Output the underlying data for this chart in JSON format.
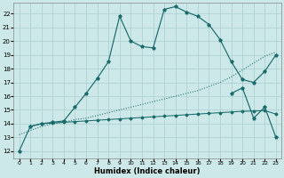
{
  "xlabel": "Humidex (Indice chaleur)",
  "bg_color": "#cde8e8",
  "grid_color": "#aacece",
  "line_color": "#1a6b6b",
  "xlim": [
    -0.5,
    23.5
  ],
  "ylim": [
    11.5,
    22.8
  ],
  "xticks": [
    0,
    1,
    2,
    3,
    4,
    5,
    6,
    7,
    8,
    9,
    10,
    11,
    12,
    13,
    14,
    15,
    16,
    17,
    18,
    19,
    20,
    21,
    22,
    23
  ],
  "yticks": [
    12,
    13,
    14,
    15,
    16,
    17,
    18,
    19,
    20,
    21,
    22
  ],
  "line1_x": [
    0,
    1,
    2,
    3,
    4,
    5,
    6,
    7,
    8,
    9,
    10,
    11,
    12,
    13,
    14,
    15,
    16,
    17,
    18,
    19,
    20,
    21,
    22,
    23
  ],
  "line1_y": [
    12.0,
    13.8,
    14.0,
    14.1,
    14.2,
    15.2,
    16.2,
    17.3,
    18.5,
    21.8,
    20.0,
    19.6,
    19.5,
    22.3,
    22.5,
    22.1,
    21.8,
    21.2,
    20.1,
    18.5,
    17.2,
    17.0,
    17.8,
    19.0
  ],
  "line2_x": [
    0,
    1,
    2,
    3,
    4,
    5,
    6,
    7,
    8,
    9,
    10,
    11,
    12,
    13,
    14,
    15,
    16,
    17,
    18,
    19,
    20,
    21,
    22,
    23
  ],
  "line2_y": [
    13.2,
    13.5,
    13.8,
    14.0,
    14.1,
    14.3,
    14.4,
    14.6,
    14.8,
    15.0,
    15.2,
    15.4,
    15.6,
    15.8,
    16.0,
    16.2,
    16.4,
    16.7,
    17.0,
    17.4,
    17.9,
    18.4,
    18.9,
    19.2
  ],
  "line3_x": [
    1,
    2,
    3,
    4,
    5,
    6,
    7,
    8,
    9,
    10,
    11,
    12,
    13,
    14,
    15,
    16,
    17,
    18,
    19,
    20,
    21,
    22,
    23
  ],
  "line3_y": [
    13.8,
    14.0,
    14.05,
    14.1,
    14.15,
    14.2,
    14.25,
    14.3,
    14.35,
    14.4,
    14.45,
    14.5,
    14.55,
    14.6,
    14.65,
    14.7,
    14.75,
    14.8,
    14.85,
    14.9,
    14.92,
    14.95,
    14.7
  ],
  "line4_x": [
    19,
    20,
    21,
    22,
    23
  ],
  "line4_y": [
    16.2,
    16.6,
    14.4,
    15.2,
    13.0
  ]
}
